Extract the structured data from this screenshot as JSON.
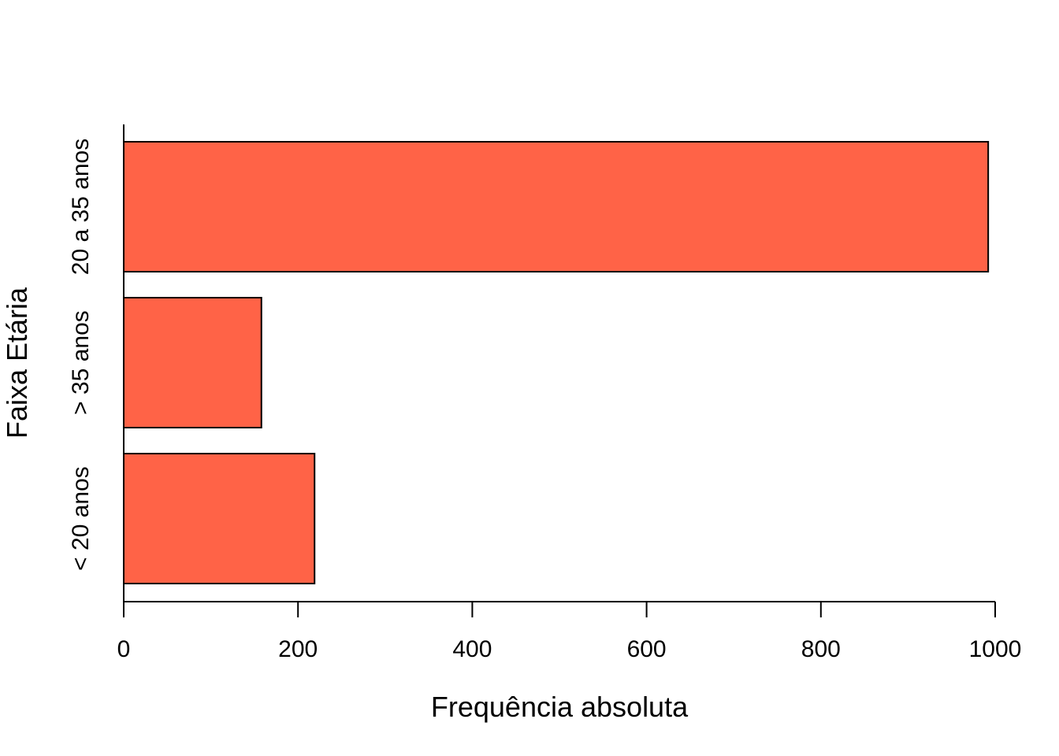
{
  "chart_data": {
    "type": "bar",
    "orientation": "horizontal",
    "categories": [
      "< 20 anos",
      "> 35 anos",
      "20 a 35 anos"
    ],
    "values": [
      219,
      158,
      992
    ],
    "xlabel": "Frequência absoluta",
    "ylabel": "Faixa Etária",
    "xlim": [
      0,
      1000
    ],
    "xticks": [
      0,
      200,
      400,
      600,
      800,
      1000
    ],
    "xtick_labels": [
      "0",
      "200",
      "400",
      "600",
      "800",
      "1000"
    ],
    "grid": false,
    "legend": "none",
    "bar_color": "#FF6347",
    "bar_edge_color": "#000000"
  }
}
